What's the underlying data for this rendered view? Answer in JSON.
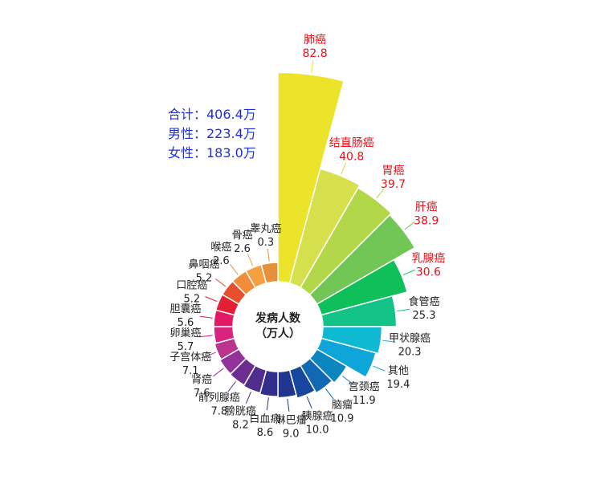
{
  "chart_data": {
    "type": "radial-bar",
    "center_label": [
      "发病人数",
      "（万人）"
    ],
    "summary": [
      "合计：406.4万",
      "男性：223.4万",
      "女性：183.0万"
    ],
    "series": [
      {
        "name": "肺癌",
        "value": 82.8,
        "color": "#ebe42a",
        "highlight": true
      },
      {
        "name": "结直肠癌",
        "value": 40.8,
        "color": "#d6e04c",
        "highlight": true
      },
      {
        "name": "胃癌",
        "value": 39.7,
        "color": "#b2d84a",
        "highlight": true
      },
      {
        "name": "肝癌",
        "value": 38.9,
        "color": "#72c655",
        "highlight": true
      },
      {
        "name": "乳腺癌",
        "value": 30.6,
        "color": "#0fbf5a",
        "highlight": true
      },
      {
        "name": "食管癌",
        "value": 25.3,
        "color": "#13c287",
        "highlight": false
      },
      {
        "name": "甲状腺癌",
        "value": 20.3,
        "color": "#0fb9d2",
        "highlight": false
      },
      {
        "name": "其他",
        "value": 19.4,
        "color": "#0ea5d8",
        "highlight": false
      },
      {
        "name": "宫颈癌",
        "value": 11.9,
        "color": "#0c86c0",
        "highlight": false
      },
      {
        "name": "脑瘤",
        "value": 10.9,
        "color": "#1168b4",
        "highlight": false
      },
      {
        "name": "胰腺癌",
        "value": 10.0,
        "color": "#17469e",
        "highlight": false
      },
      {
        "name": "淋巴瘤",
        "value": 9.0,
        "color": "#20358f",
        "highlight": false
      },
      {
        "name": "白血病",
        "value": 8.6,
        "color": "#322f8c",
        "highlight": false
      },
      {
        "name": "膀胱癌",
        "value": 8.2,
        "color": "#512d8d",
        "highlight": false
      },
      {
        "name": "前列腺癌",
        "value": 7.8,
        "color": "#6c2d8f",
        "highlight": false
      },
      {
        "name": "肾癌",
        "value": 7.6,
        "color": "#93319a",
        "highlight": false
      },
      {
        "name": "子宫体癌",
        "value": 7.1,
        "color": "#b8348f",
        "highlight": false
      },
      {
        "name": "卵巢癌",
        "value": 5.7,
        "color": "#d8237f",
        "highlight": false
      },
      {
        "name": "胆囊癌",
        "value": 5.6,
        "color": "#e11a63",
        "highlight": false
      },
      {
        "name": "口腔癌",
        "value": 5.2,
        "color": "#e31e35",
        "highlight": false
      },
      {
        "name": "鼻咽癌",
        "value": 5.2,
        "color": "#e7502e",
        "highlight": false
      },
      {
        "name": "喉癌",
        "value": 2.6,
        "color": "#f08c3a",
        "highlight": false
      },
      {
        "name": "骨癌",
        "value": 2.6,
        "color": "#f5a040",
        "highlight": false
      },
      {
        "name": "睾丸癌",
        "value": 0.3,
        "color": "#e5913c",
        "highlight": false
      }
    ],
    "label_color_highlight": "#e8121b",
    "label_color_normal": "#222222",
    "summary_color": "#1f2fd6"
  }
}
